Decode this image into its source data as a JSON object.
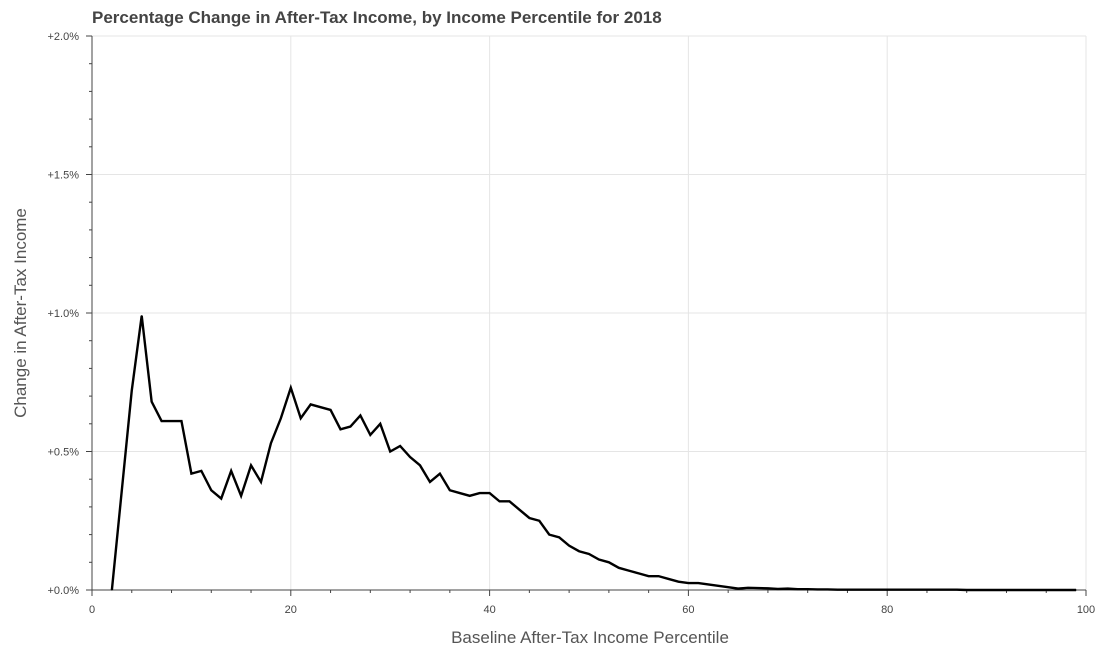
{
  "chart_data": {
    "type": "line",
    "title": "Percentage Change in After-Tax Income, by Income Percentile for 2018",
    "xlabel": "Baseline After-Tax Income Percentile",
    "ylabel": "Change in After-Tax Income",
    "xlim": [
      0,
      100
    ],
    "ylim": [
      0,
      2.0
    ],
    "x_ticks": [
      "0",
      "20",
      "40",
      "60",
      "80",
      "100"
    ],
    "y_ticks": [
      "+0.0%",
      "+0.5%",
      "+1.0%",
      "+1.5%",
      "+2.0%"
    ],
    "grid": true,
    "line_color": "#000000",
    "series": [
      {
        "x": [
          2,
          3,
          4,
          5,
          6,
          7,
          8,
          9,
          10,
          11,
          12,
          13,
          14,
          15,
          16,
          17,
          18,
          19,
          20,
          21,
          22,
          23,
          24,
          25,
          26,
          27,
          28,
          29,
          30,
          31,
          32,
          33,
          34,
          35,
          36,
          37,
          38,
          39,
          40,
          41,
          42,
          43,
          44,
          45,
          46,
          47,
          48,
          49,
          50,
          51,
          52,
          53,
          54,
          55,
          56,
          57,
          58,
          59,
          60,
          61,
          62,
          63,
          64,
          65,
          66,
          67,
          68,
          69,
          70,
          71,
          72,
          73,
          74,
          75,
          76,
          77,
          78,
          79,
          80,
          81,
          82,
          83,
          84,
          85,
          86,
          87,
          88,
          89,
          90,
          91,
          92,
          93,
          94,
          95,
          96,
          97,
          98,
          99
        ],
        "y": [
          0.0,
          0.36,
          0.72,
          0.99,
          0.68,
          0.61,
          0.61,
          0.61,
          0.42,
          0.43,
          0.36,
          0.33,
          0.43,
          0.34,
          0.45,
          0.39,
          0.53,
          0.62,
          0.73,
          0.62,
          0.67,
          0.66,
          0.65,
          0.58,
          0.59,
          0.63,
          0.56,
          0.6,
          0.5,
          0.52,
          0.48,
          0.45,
          0.39,
          0.42,
          0.36,
          0.35,
          0.34,
          0.35,
          0.35,
          0.32,
          0.32,
          0.29,
          0.26,
          0.25,
          0.2,
          0.19,
          0.16,
          0.14,
          0.13,
          0.11,
          0.1,
          0.08,
          0.07,
          0.06,
          0.05,
          0.05,
          0.04,
          0.03,
          0.025,
          0.025,
          0.02,
          0.015,
          0.01,
          0.005,
          0.008,
          0.007,
          0.006,
          0.004,
          0.005,
          0.003,
          0.003,
          0.002,
          0.002,
          0.001,
          0.001,
          0.001,
          0.001,
          0.001,
          0.001,
          0.001,
          0.001,
          0.001,
          0.001,
          0.001,
          0.001,
          0.001,
          0.0,
          0.0,
          0.0,
          0.0,
          0.0,
          0.0,
          0.0,
          0.0,
          0.0,
          0.0,
          0.0,
          0.0
        ]
      }
    ]
  }
}
